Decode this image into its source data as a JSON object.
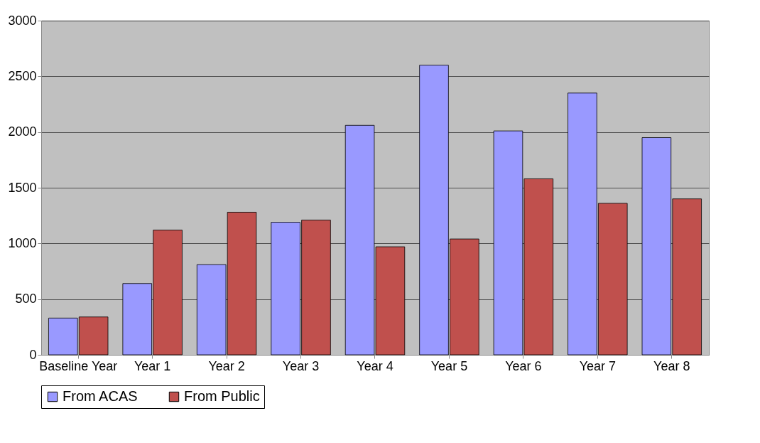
{
  "chart_data": {
    "type": "bar",
    "categories": [
      "Baseline Year",
      "Year 1",
      "Year 2",
      "Year 3",
      "Year 4",
      "Year 5",
      "Year 6",
      "Year 7",
      "Year 8"
    ],
    "series": [
      {
        "name": "From ACAS",
        "color": "#9999ff",
        "values": [
          330,
          640,
          810,
          1190,
          2060,
          2600,
          2010,
          2350,
          1950
        ]
      },
      {
        "name": "From Public",
        "color": "#c0504d",
        "values": [
          340,
          1120,
          1280,
          1210,
          970,
          1040,
          1580,
          1360,
          1400
        ]
      }
    ],
    "ylim": [
      0,
      3000
    ],
    "yticks": [
      0,
      500,
      1000,
      1500,
      2000,
      2500,
      3000
    ],
    "grid": "y",
    "legend": "bottom"
  }
}
